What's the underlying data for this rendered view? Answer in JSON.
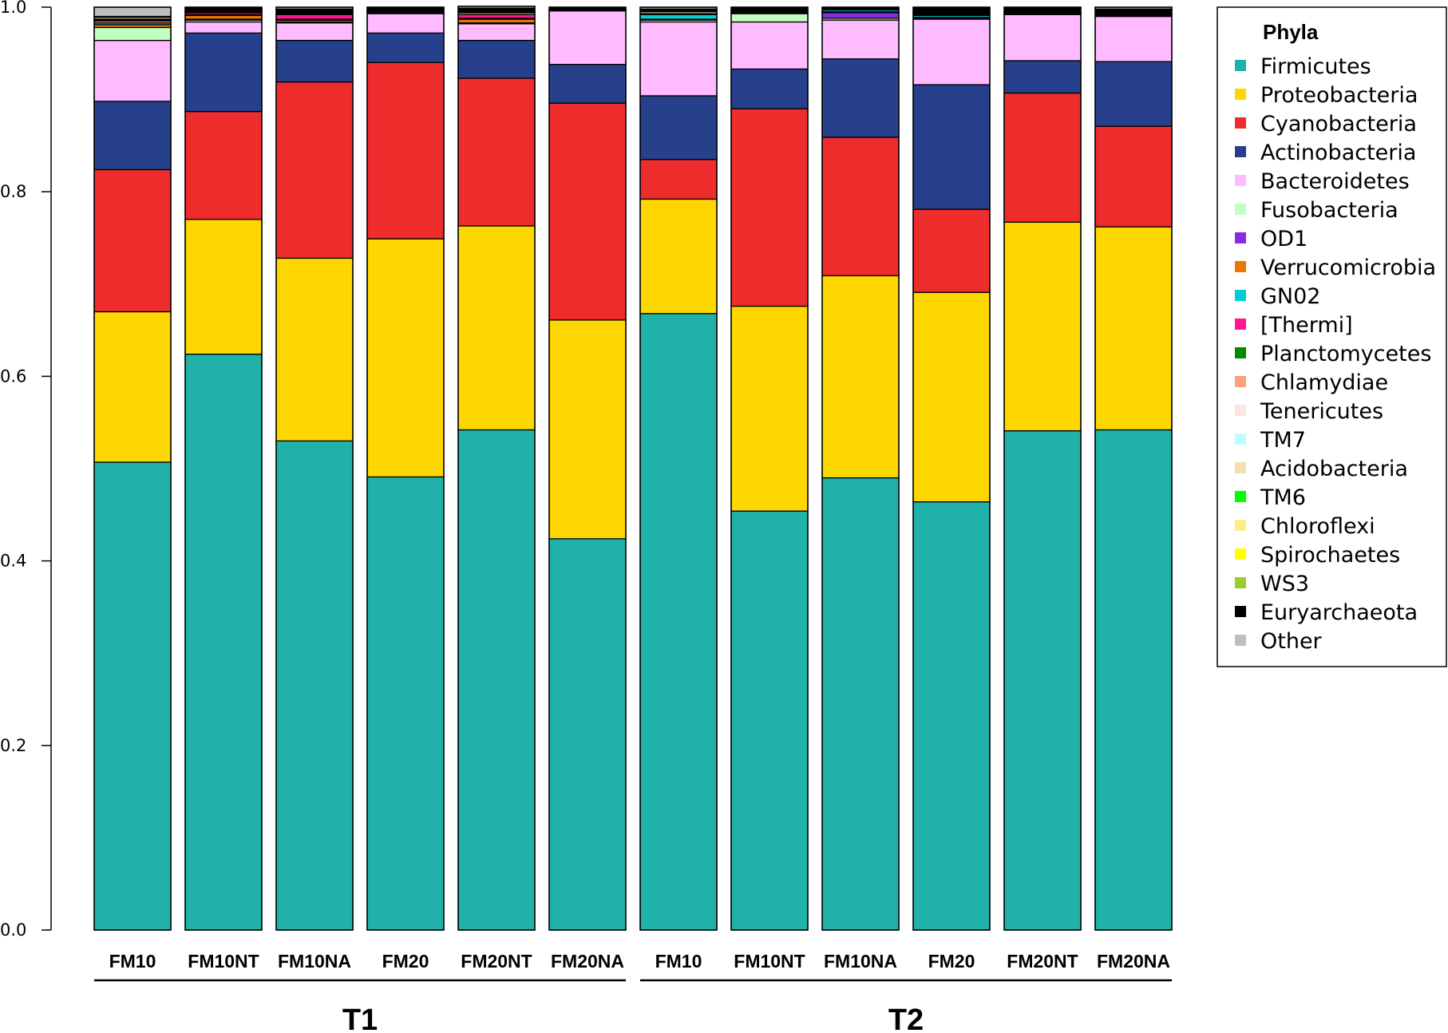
{
  "chart_data": {
    "type": "bar",
    "stacked": true,
    "title": "",
    "xlabel": "",
    "ylabel": "",
    "ylim": [
      0,
      1
    ],
    "yticks": [
      "0.0",
      "0.2",
      "0.4",
      "0.6",
      "0.8",
      "1.0"
    ],
    "categories": [
      "FM10",
      "FM10NT",
      "FM10NA",
      "FM20",
      "FM20NT",
      "FM20NA",
      "FM10",
      "FM10NT",
      "FM10NA",
      "FM20",
      "FM20NT",
      "FM20NA"
    ],
    "groups": [
      {
        "label": "T1",
        "start": 0,
        "end": 5
      },
      {
        "label": "T2",
        "start": 6,
        "end": 11
      }
    ],
    "legend_title": "Phyla",
    "legend_position": "right",
    "series": [
      {
        "name": "Firmicutes",
        "color": "#20B2AA",
        "values": [
          0.507,
          0.624,
          0.53,
          0.491,
          0.542,
          0.424,
          0.668,
          0.454,
          0.49,
          0.464,
          0.541,
          0.542
        ]
      },
      {
        "name": "Proteobacteria",
        "color": "#FFD700",
        "values": [
          0.163,
          0.146,
          0.198,
          0.258,
          0.221,
          0.237,
          0.124,
          0.222,
          0.219,
          0.227,
          0.226,
          0.22
        ]
      },
      {
        "name": "Cyanobacteria",
        "color": "#EE2C2C",
        "values": [
          0.154,
          0.117,
          0.191,
          0.191,
          0.16,
          0.235,
          0.043,
          0.214,
          0.15,
          0.09,
          0.14,
          0.109
        ]
      },
      {
        "name": "Actinobacteria",
        "color": "#27408B",
        "values": [
          0.074,
          0.085,
          0.045,
          0.032,
          0.041,
          0.042,
          0.069,
          0.043,
          0.085,
          0.135,
          0.035,
          0.07
        ]
      },
      {
        "name": "Bacteroidetes",
        "color": "#FFBBFF",
        "values": [
          0.066,
          0.012,
          0.019,
          0.021,
          0.018,
          0.058,
          0.08,
          0.051,
          0.042,
          0.071,
          0.05,
          0.049
        ]
      },
      {
        "name": "Fusobacteria",
        "color": "#C1FFC1",
        "values": [
          0.014,
          0.002,
          0.001,
          0.001,
          0.001,
          0.0,
          0.002,
          0.009,
          0.002,
          0.001,
          0.001,
          0.001
        ]
      },
      {
        "name": "OD1",
        "color": "#8A2BE2",
        "values": [
          0.0,
          0.001,
          0.0,
          0.0,
          0.0,
          0.0,
          0.0,
          0.0,
          0.006,
          0.0,
          0.0,
          0.0
        ]
      },
      {
        "name": "Verrucomicrobia",
        "color": "#EE7600",
        "values": [
          0.003,
          0.004,
          0.002,
          0.001,
          0.004,
          0.0,
          0.001,
          0.001,
          0.001,
          0.001,
          0.001,
          0.001
        ]
      },
      {
        "name": "GN02",
        "color": "#00CED1",
        "values": [
          0.002,
          0.001,
          0.001,
          0.001,
          0.001,
          0.0,
          0.005,
          0.0,
          0.002,
          0.002,
          0.0,
          0.0
        ]
      },
      {
        "name": "[Thermi]",
        "color": "#FF1493",
        "values": [
          0.0,
          0.002,
          0.005,
          0.0,
          0.004,
          0.0,
          0.0,
          0.0,
          0.0,
          0.0,
          0.0,
          0.0
        ]
      },
      {
        "name": "Planctomycetes",
        "color": "#008B00",
        "values": [
          0.0,
          0.0,
          0.0,
          0.0,
          0.0,
          0.0,
          0.0,
          0.0,
          0.0,
          0.0,
          0.0,
          0.0
        ]
      },
      {
        "name": "Chlamydiae",
        "color": "#FFA07A",
        "values": [
          0.002,
          0.001,
          0.001,
          0.0,
          0.002,
          0.0,
          0.0,
          0.0,
          0.0,
          0.0,
          0.0,
          0.0
        ]
      },
      {
        "name": "Tenericutes",
        "color": "#FFE4E1",
        "values": [
          0.001,
          0.0,
          0.0,
          0.0,
          0.0,
          0.0,
          0.0,
          0.0,
          0.0,
          0.0,
          0.0,
          0.0
        ]
      },
      {
        "name": "TM7",
        "color": "#BBFFFF",
        "values": [
          0.001,
          0.0,
          0.0,
          0.0,
          0.0,
          0.0,
          0.001,
          0.0,
          0.0,
          0.001,
          0.0,
          0.0
        ]
      },
      {
        "name": "Acidobacteria",
        "color": "#F5DEB3",
        "values": [
          0.002,
          0.001,
          0.001,
          0.001,
          0.001,
          0.0,
          0.002,
          0.0,
          0.0,
          0.0,
          0.001,
          0.0
        ]
      },
      {
        "name": "TM6",
        "color": "#00FF00",
        "values": [
          0.0,
          0.0,
          0.0,
          0.0,
          0.0,
          0.0,
          0.0,
          0.0,
          0.0,
          0.0,
          0.0,
          0.0
        ]
      },
      {
        "name": "Chloroflexi",
        "color": "#FFEC8B",
        "values": [
          0.0,
          0.0,
          0.0,
          0.0,
          0.0,
          0.0,
          0.0,
          0.0,
          0.0,
          0.0,
          0.0,
          0.0
        ]
      },
      {
        "name": "Spirochaetes",
        "color": "#FFFF00",
        "values": [
          0.0,
          0.0,
          0.0,
          0.0,
          0.0,
          0.0,
          0.0,
          0.0,
          0.0,
          0.0,
          0.0,
          0.0
        ]
      },
      {
        "name": "WS3",
        "color": "#9ACD32",
        "values": [
          0.0,
          0.0,
          0.0,
          0.0,
          0.0,
          0.0,
          0.0,
          0.0,
          0.0,
          0.0,
          0.0,
          0.0
        ]
      },
      {
        "name": "Euryarchaeota",
        "color": "#000000",
        "values": [
          0.001,
          0.003,
          0.004,
          0.002,
          0.004,
          0.004,
          0.003,
          0.006,
          0.003,
          0.008,
          0.004,
          0.006
        ]
      },
      {
        "name": "Other",
        "color": "#BEBEBE",
        "values": [
          0.01,
          0.001,
          0.002,
          0.001,
          0.002,
          0.0,
          0.002,
          0.0,
          0.0,
          0.0,
          0.001,
          0.002
        ]
      }
    ]
  }
}
